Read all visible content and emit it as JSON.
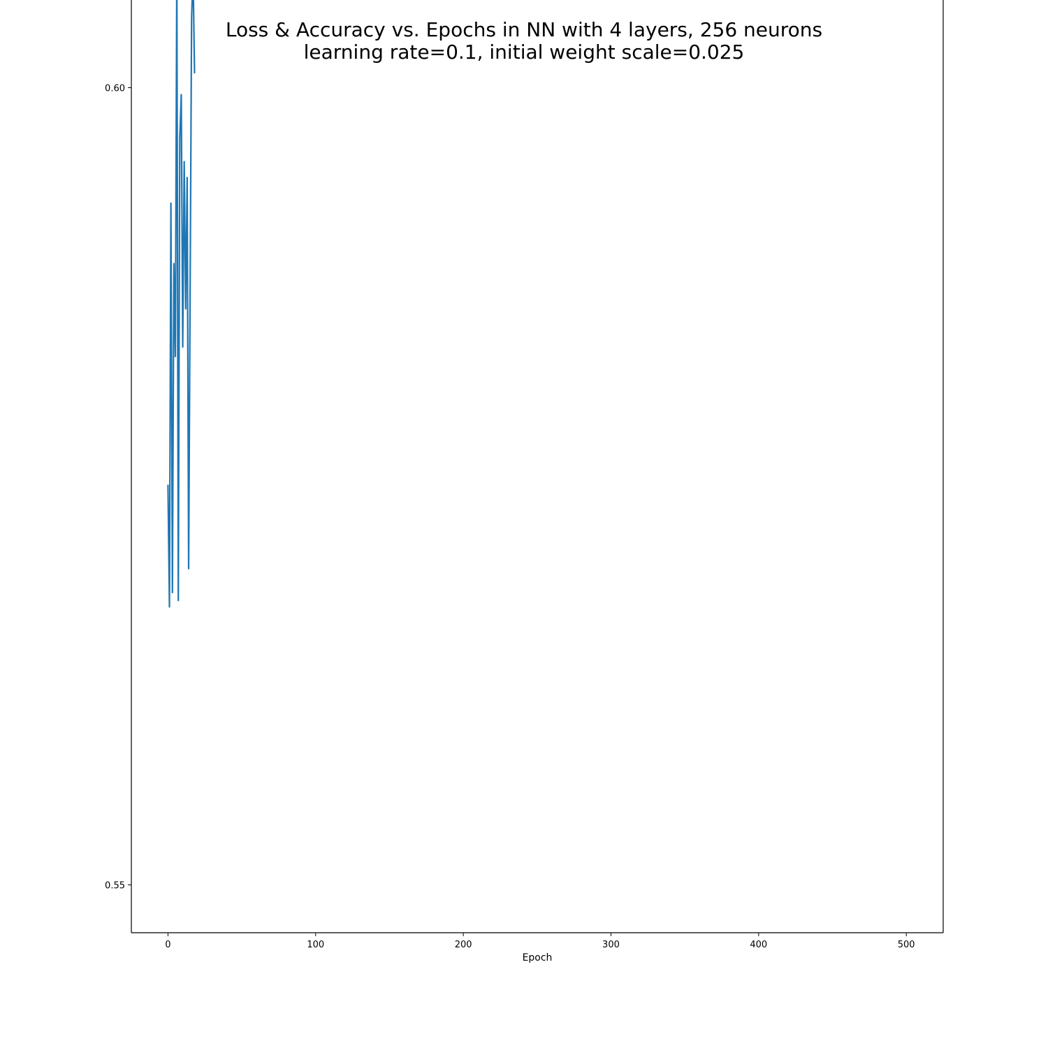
{
  "chart_data": {
    "type": "line",
    "title": "Loss & Accuracy vs. Epochs in NN with 4 layers, 256 neurons",
    "subtitle": "learning rate=0.1, initial weight scale=0.025",
    "xlabel": "Epoch",
    "ylabel": "",
    "xlim": [
      -24.8,
      525
    ],
    "ylim": [
      0.547,
      0.6055
    ],
    "x_ticks": [
      0,
      100,
      200,
      300,
      400,
      500
    ],
    "x_tick_labels": [
      "0",
      "100",
      "200",
      "300",
      "400",
      "500"
    ],
    "y_ticks": [
      0.55,
      0.6
    ],
    "y_tick_labels": [
      "0.55",
      "0.60"
    ],
    "grid": false,
    "legend": "none",
    "series": [
      {
        "color": "#1f77b4",
        "x": [
          0,
          1,
          2,
          3,
          4,
          5,
          6,
          7,
          8,
          9,
          10,
          11,
          12,
          13,
          14,
          16,
          17,
          18
        ],
        "y": [
          0.5751,
          0.5674,
          0.5928,
          0.5683,
          0.589,
          0.5831,
          0.6077,
          0.5678,
          0.5968,
          0.5996,
          0.5837,
          0.5954,
          0.5861,
          0.5944,
          0.5698,
          0.6044,
          0.6072,
          0.6009
        ]
      }
    ]
  },
  "colors": {
    "background": "#ffffff",
    "axes": "#000000",
    "series_line": "#1f77b4"
  }
}
